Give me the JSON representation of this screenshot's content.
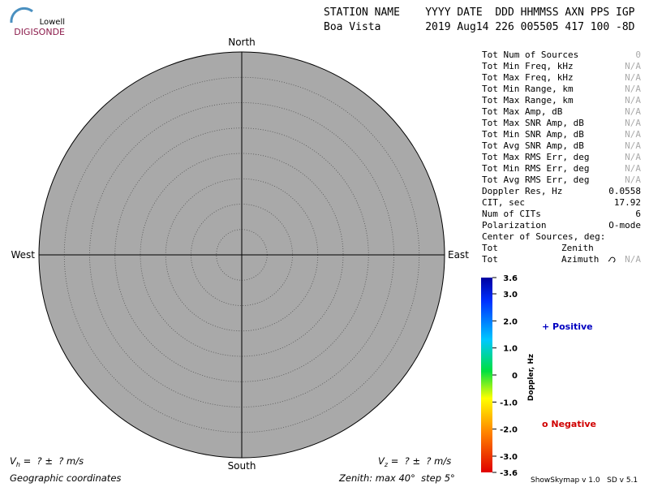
{
  "header": {
    "logo_top": "Lowell",
    "logo_bottom": "DIGISONDE",
    "line1": "STATION NAME    YYYY DATE  DDD HHMMSS AXN PPS IGP",
    "line2": "Boa Vista       2019 Aug14 226 005505 417 100 -8D"
  },
  "plot": {
    "north": "North",
    "south": "South",
    "east": "East",
    "west": "West"
  },
  "stats": [
    [
      "Tot Num of Sources",
      "0"
    ],
    [
      "Tot Min Freq, kHz",
      "N/A"
    ],
    [
      "Tot Max Freq, kHz",
      "N/A"
    ],
    [
      "Tot Min Range, km",
      "N/A"
    ],
    [
      "Tot Max Range, km",
      "N/A"
    ],
    [
      "Tot Max Amp, dB",
      "N/A"
    ],
    [
      "Tot Max SNR Amp, dB",
      "N/A"
    ],
    [
      "Tot Min SNR Amp, dB",
      "N/A"
    ],
    [
      "Tot Avg SNR Amp, dB",
      "N/A"
    ],
    [
      "Tot Max RMS Err, deg",
      "N/A"
    ],
    [
      "Tot Min RMS Err, deg",
      "N/A"
    ],
    [
      "Tot Avg RMS Err, deg",
      "N/A"
    ],
    [
      "Doppler Res, Hz",
      "0.0558"
    ],
    [
      "CIT, sec",
      "17.92"
    ],
    [
      "Num of CITs",
      "6"
    ],
    [
      "Polarization",
      "O-mode"
    ]
  ],
  "center": {
    "title": "Center of Sources, deg:",
    "zenith": {
      "label": "Tot",
      "sub": "Zenith"
    },
    "azimuth": {
      "label": "Tot",
      "sub": "Azimuth",
      "value": "N/A"
    }
  },
  "colorbar": {
    "label": "Doppler, Hz",
    "lim": [
      -3.6,
      3.6
    ],
    "ticks": [
      3.6,
      {
        "value": 3,
        "label": "3.0"
      },
      {
        "value": 2,
        "label": "2.0"
      },
      {
        "value": 1,
        "label": "1.0"
      },
      0,
      {
        "value": -1,
        "label": "-1.0"
      },
      {
        "value": -2,
        "label": "-2.0"
      },
      {
        "value": -3,
        "label": "-3.0"
      },
      -3.6
    ]
  },
  "legend": {
    "positive": "+ Positive",
    "negative": "o Negative"
  },
  "footer": {
    "vh": [
      "V",
      "h",
      " =  ? ±  ? m/s"
    ],
    "vz": [
      "V",
      "z",
      " =  ? ±  ? m/s"
    ],
    "coords": "Geographic coordinates",
    "zenith": "Zenith: max 40°  step 5°",
    "version": "ShowSkymap v 1.0   SD v 5.1"
  }
}
